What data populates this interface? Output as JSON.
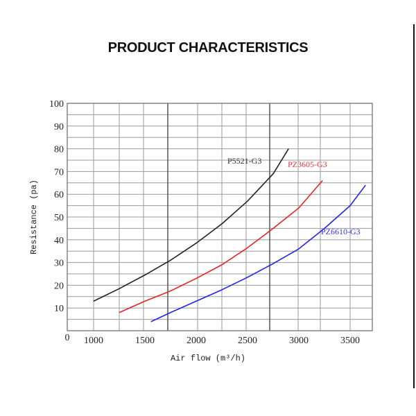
{
  "chart_data": {
    "type": "line",
    "title": "PRODUCT CHARACTERISTICS",
    "xlabel": "Air flow (m³/h)",
    "ylabel": "Resistance (pa)",
    "x_ticks": [
      "0",
      "1000",
      "1500",
      "2000",
      "2500",
      "3000",
      "3500"
    ],
    "y_ticks": [
      "10",
      "20",
      "30",
      "40",
      "50",
      "60",
      "70",
      "80",
      "90",
      "100"
    ],
    "xlim": [
      740,
      3760
    ],
    "ylim": [
      0,
      100
    ],
    "grid": true,
    "series": [
      {
        "name": "P5521-G3",
        "color": "#222222",
        "x": [
          1000,
          1250,
          1500,
          1750,
          2000,
          2250,
          2500,
          2750,
          2900
        ],
        "y": [
          13,
          18.5,
          24.5,
          31,
          38.5,
          47,
          57,
          69,
          80
        ]
      },
      {
        "name": "PZ3605-G3",
        "color": "#ee2222",
        "x": [
          1250,
          1500,
          1750,
          2000,
          2250,
          2500,
          2750,
          3000,
          3230
        ],
        "y": [
          8,
          13,
          17.5,
          23,
          29,
          36.5,
          45,
          54,
          66
        ]
      },
      {
        "name": "PZ6610-G3",
        "color": "#2222ee",
        "x": [
          1560,
          1750,
          2000,
          2250,
          2500,
          2750,
          3000,
          3250,
          3500,
          3650
        ],
        "y": [
          4,
          8,
          13,
          18,
          23.5,
          29.5,
          36,
          45,
          55,
          64
        ]
      }
    ]
  }
}
